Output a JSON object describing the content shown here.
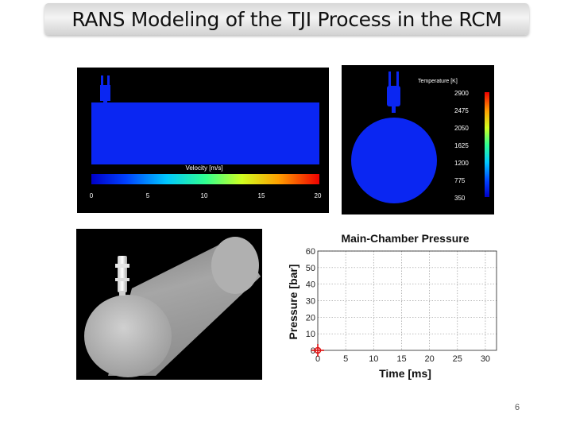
{
  "slide": {
    "title": "RANS Modeling of the TJI Process in the RCM",
    "page_number": "6"
  },
  "velocity_panel": {
    "colorbar_label": "Velocity [m/s]",
    "ticks": [
      "0",
      "5",
      "10",
      "15",
      "20"
    ]
  },
  "temperature_panel": {
    "colorbar_label": "Temperature [K]",
    "ticks": [
      "2900",
      "2475",
      "2050",
      "1625",
      "1200",
      "775",
      "350"
    ]
  },
  "colors": {
    "field_blue": "#0a26f2",
    "grid": "#999999",
    "marker": "#dd1111"
  },
  "chart_data": {
    "type": "scatter",
    "title": "Main-Chamber Pressure",
    "xlabel": "Time [ms]",
    "ylabel": "Pressure [bar]",
    "xlim": [
      0,
      32
    ],
    "ylim": [
      0,
      60
    ],
    "xticks": [
      0,
      5,
      10,
      15,
      20,
      25,
      30
    ],
    "yticks": [
      0,
      10,
      20,
      30,
      40,
      50,
      60
    ],
    "grid": true,
    "series": [
      {
        "points": [
          {
            "x": 0,
            "y": 0
          }
        ]
      }
    ]
  }
}
